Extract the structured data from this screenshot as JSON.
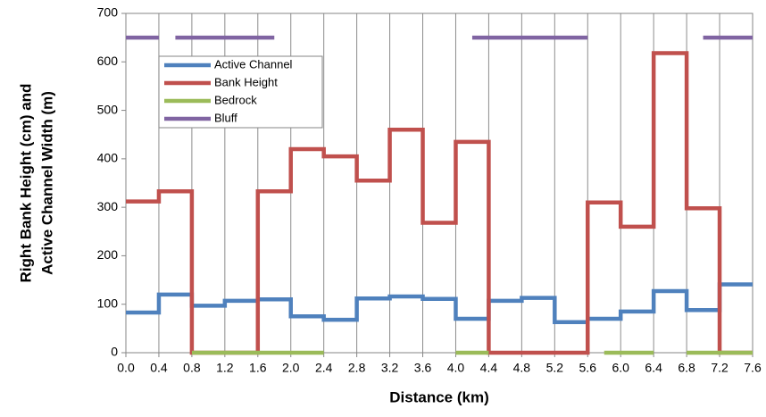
{
  "chart_data": {
    "type": "line",
    "xlabel": "Distance (km)",
    "ylabel": [
      "Right Bank Height (cm) and",
      "Active Channel Width (m)"
    ],
    "xlim": [
      0,
      7.6
    ],
    "ylim": [
      0,
      700
    ],
    "xticks": [
      {
        "value": 0,
        "label": "0.0"
      },
      0.4,
      0.8,
      1.2,
      1.6,
      {
        "value": 2,
        "label": "2.0"
      },
      2.4,
      2.8,
      3.2,
      3.6,
      {
        "value": 4,
        "label": "4.0"
      },
      4.4,
      4.8,
      5.2,
      5.6,
      {
        "value": 6,
        "label": "6.0"
      },
      6.4,
      6.8,
      7.2,
      7.6
    ],
    "yticks": [
      0,
      100,
      200,
      300,
      400,
      500,
      600,
      700
    ],
    "grid": "x",
    "legend": "upper left",
    "series": [
      {
        "name": "Active Channel",
        "color": "#4f81bd",
        "step": true,
        "x": [
          0,
          0.4,
          0.8,
          1.2,
          1.6,
          2,
          2.4,
          2.8,
          3.2,
          3.6,
          4,
          4.4,
          4.8,
          5.2,
          5.6,
          6,
          6.4,
          6.8,
          7.2,
          7.6
        ],
        "values": [
          83,
          120,
          97,
          107,
          110,
          75,
          68,
          112,
          116,
          111,
          70,
          107,
          113,
          63,
          70,
          85,
          127,
          88,
          141,
          141
        ]
      },
      {
        "name": "Bank Height",
        "color": "#c0504d",
        "step": true,
        "x": [
          0,
          0.4,
          0.8,
          1.2,
          1.6,
          2,
          2.4,
          2.8,
          3.2,
          3.6,
          4,
          4.4,
          4.8,
          5.2,
          5.6,
          6,
          6.4,
          6.8,
          7.2,
          7.6
        ],
        "values": [
          312,
          333,
          0,
          0,
          333,
          420,
          405,
          355,
          460,
          268,
          435,
          0,
          0,
          0,
          310,
          260,
          618,
          298,
          0,
          0
        ]
      },
      {
        "name": "Bedrock",
        "color": "#9bbb59",
        "step": false,
        "x": [
          0.8,
          2.4,
          null,
          4.0,
          4.4,
          null,
          5.8,
          6.4,
          null,
          6.8,
          7.6
        ],
        "values": [
          0,
          0,
          null,
          0,
          0,
          null,
          0,
          0,
          null,
          0,
          0
        ]
      },
      {
        "name": "Bluff",
        "color": "#8064a2",
        "step": false,
        "x": [
          0,
          0.4,
          null,
          0.6,
          1.8,
          null,
          4.2,
          5.6,
          null,
          7.0,
          7.6
        ],
        "values": [
          650,
          650,
          null,
          650,
          650,
          null,
          650,
          650,
          null,
          650,
          650
        ]
      }
    ]
  }
}
